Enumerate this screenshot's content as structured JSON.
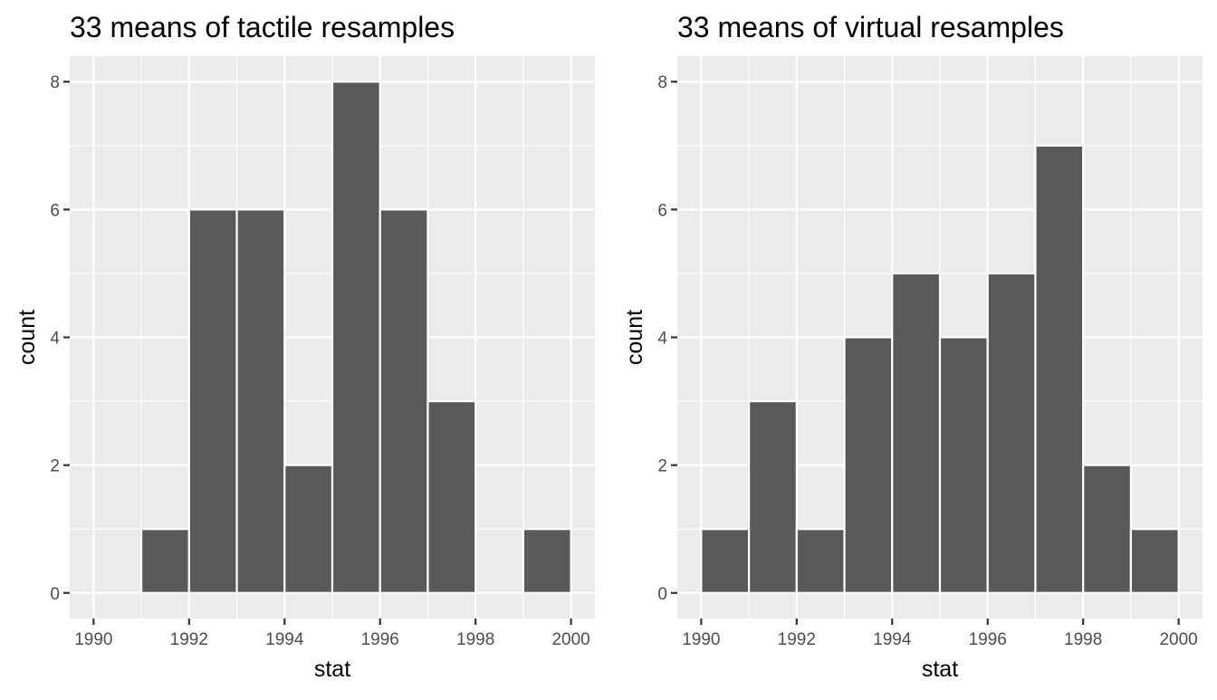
{
  "chart_data": [
    {
      "type": "bar",
      "title": "33 means of tactile resamples",
      "xlabel": "stat",
      "ylabel": "count",
      "bin_width": 1,
      "bins": [
        {
          "start": 1990,
          "end": 1991,
          "count": 0
        },
        {
          "start": 1991,
          "end": 1992,
          "count": 1
        },
        {
          "start": 1992,
          "end": 1993,
          "count": 6
        },
        {
          "start": 1993,
          "end": 1994,
          "count": 6
        },
        {
          "start": 1994,
          "end": 1995,
          "count": 2
        },
        {
          "start": 1995,
          "end": 1996,
          "count": 8
        },
        {
          "start": 1996,
          "end": 1997,
          "count": 6
        },
        {
          "start": 1997,
          "end": 1998,
          "count": 3
        },
        {
          "start": 1998,
          "end": 1999,
          "count": 0
        },
        {
          "start": 1999,
          "end": 2000,
          "count": 1
        }
      ],
      "xlim": [
        1989.5,
        2000.5
      ],
      "ylim": [
        -0.4,
        8.4
      ],
      "x_ticks": [
        1990,
        1992,
        1994,
        1996,
        1998,
        2000
      ],
      "y_ticks": [
        0,
        2,
        4,
        6,
        8
      ],
      "grid": true,
      "legend": "none"
    },
    {
      "type": "bar",
      "title": "33 means of virtual resamples",
      "xlabel": "stat",
      "ylabel": "count",
      "bin_width": 1,
      "bins": [
        {
          "start": 1990,
          "end": 1991,
          "count": 1
        },
        {
          "start": 1991,
          "end": 1992,
          "count": 3
        },
        {
          "start": 1992,
          "end": 1993,
          "count": 1
        },
        {
          "start": 1993,
          "end": 1994,
          "count": 4
        },
        {
          "start": 1994,
          "end": 1995,
          "count": 5
        },
        {
          "start": 1995,
          "end": 1996,
          "count": 4
        },
        {
          "start": 1996,
          "end": 1997,
          "count": 5
        },
        {
          "start": 1997,
          "end": 1998,
          "count": 7
        },
        {
          "start": 1998,
          "end": 1999,
          "count": 2
        },
        {
          "start": 1999,
          "end": 2000,
          "count": 1
        }
      ],
      "xlim": [
        1989.5,
        2000.5
      ],
      "ylim": [
        -0.4,
        8.4
      ],
      "x_ticks": [
        1990,
        1992,
        1994,
        1996,
        1998,
        2000
      ],
      "y_ticks": [
        0,
        2,
        4,
        6,
        8
      ],
      "grid": true,
      "legend": "none"
    }
  ],
  "colors": {
    "bar_fill": "#595959",
    "bar_outline": "#ffffff",
    "panel_background": "#ebebeb",
    "grid": "#ffffff",
    "tick_label": "#4d4d4d"
  }
}
